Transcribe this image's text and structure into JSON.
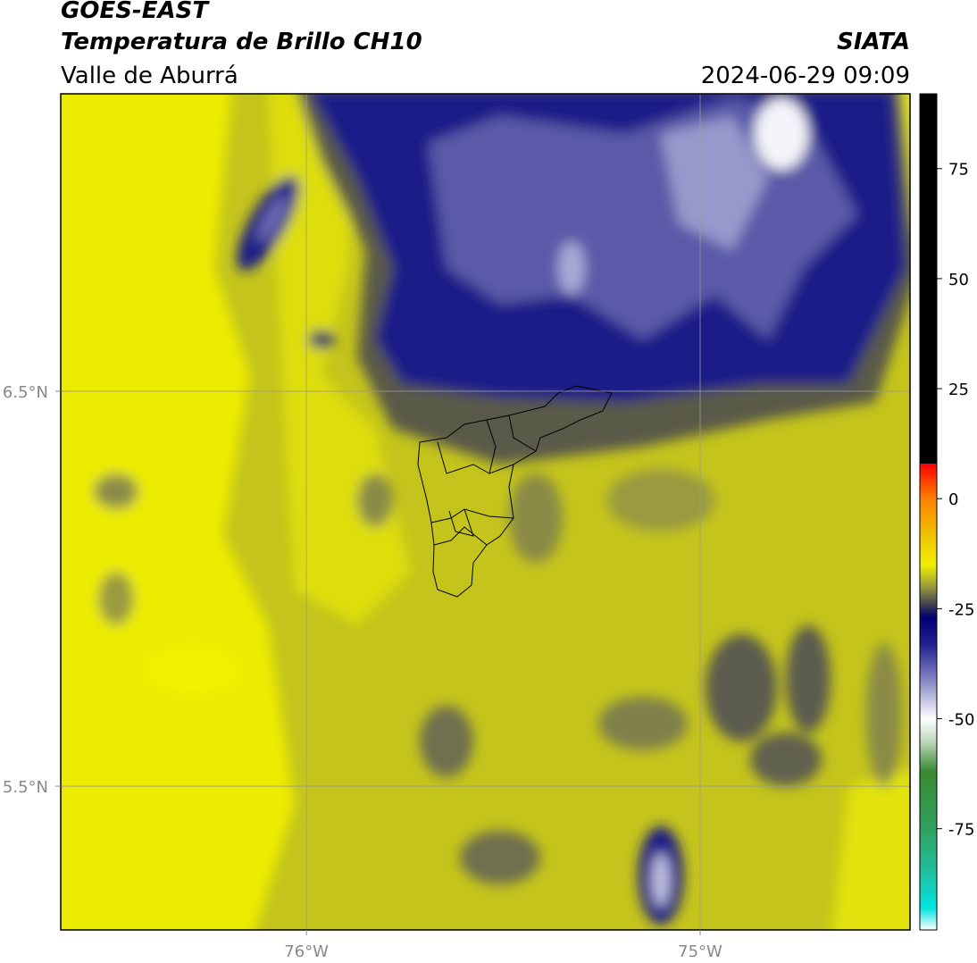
{
  "header": {
    "title": "GOES-EAST",
    "subtitle": "Temperatura de Brillo CH10",
    "region": "Valle de Aburrá",
    "source": "SIATA",
    "datetime": "2024-06-29 09:09"
  },
  "map": {
    "xlim": [
      -76.624,
      -74.467
    ],
    "ylim": [
      5.136,
      7.253
    ],
    "xticks": [
      {
        "value": -76,
        "label": "76°W"
      },
      {
        "value": -75,
        "label": "75°W"
      }
    ],
    "yticks": [
      {
        "value": 6.5,
        "label": "6.5°N"
      },
      {
        "value": 5.5,
        "label": "5.5°N"
      }
    ],
    "grid": true
  },
  "colorbar": {
    "lim": [
      -98,
      92
    ],
    "ticks": [
      -75,
      -50,
      -25,
      0,
      25,
      50,
      75
    ],
    "stops": [
      {
        "value": -98,
        "color": "#ffffff"
      },
      {
        "value": -93,
        "color": "#00e5e0"
      },
      {
        "value": -85,
        "color": "#20c0a0"
      },
      {
        "value": -75,
        "color": "#30a060"
      },
      {
        "value": -62,
        "color": "#3a8a30"
      },
      {
        "value": -55,
        "color": "#c0d8c0"
      },
      {
        "value": -50,
        "color": "#ffffff"
      },
      {
        "value": -42,
        "color": "#9090c8"
      },
      {
        "value": -33,
        "color": "#202090"
      },
      {
        "value": -27,
        "color": "#000070"
      },
      {
        "value": -24,
        "color": "#404050"
      },
      {
        "value": -20,
        "color": "#9a9a40"
      },
      {
        "value": -15,
        "color": "#f0f000"
      },
      {
        "value": -8,
        "color": "#f0c000"
      },
      {
        "value": 0,
        "color": "#ff8000"
      },
      {
        "value": 8,
        "color": "#ff0000"
      },
      {
        "value": 8,
        "color": "#000000"
      },
      {
        "value": 92,
        "color": "#000000"
      }
    ]
  }
}
